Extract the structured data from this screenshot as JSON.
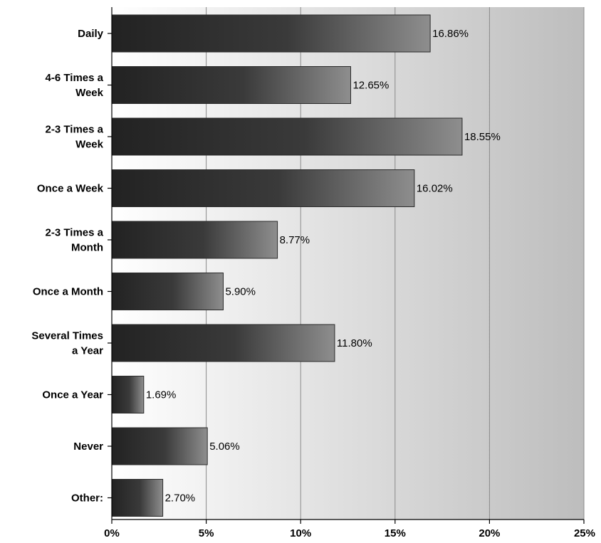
{
  "chart_data": {
    "type": "bar",
    "orientation": "horizontal",
    "categories": [
      [
        "Daily"
      ],
      [
        "4-6 Times a",
        "Week"
      ],
      [
        "2-3 Times a",
        "Week"
      ],
      [
        "Once a Week"
      ],
      [
        "2-3 Times a",
        "Month"
      ],
      [
        "Once a Month"
      ],
      [
        "Several Times",
        "a Year"
      ],
      [
        "Once a Year"
      ],
      [
        "Never"
      ],
      [
        "Other:"
      ]
    ],
    "values": [
      16.86,
      12.65,
      18.55,
      16.02,
      8.77,
      5.9,
      11.8,
      1.69,
      5.06,
      2.7
    ],
    "value_labels": [
      "16.86%",
      "12.65%",
      "18.55%",
      "16.02%",
      "8.77%",
      "5.90%",
      "11.80%",
      "1.69%",
      "5.06%",
      "2.70%"
    ],
    "x_ticks": [
      0,
      5,
      10,
      15,
      20,
      25
    ],
    "x_tick_labels": [
      "0%",
      "5%",
      "10%",
      "15%",
      "20%",
      "25%"
    ],
    "xlim": [
      0,
      25
    ],
    "grid": true,
    "title": "",
    "xlabel": "",
    "ylabel": ""
  },
  "colors": {
    "bar_dark": "#222222",
    "bar_light": "#8e8e8e",
    "plot_bg_left": "#ffffff",
    "plot_bg_right": "#bdbdbd"
  }
}
